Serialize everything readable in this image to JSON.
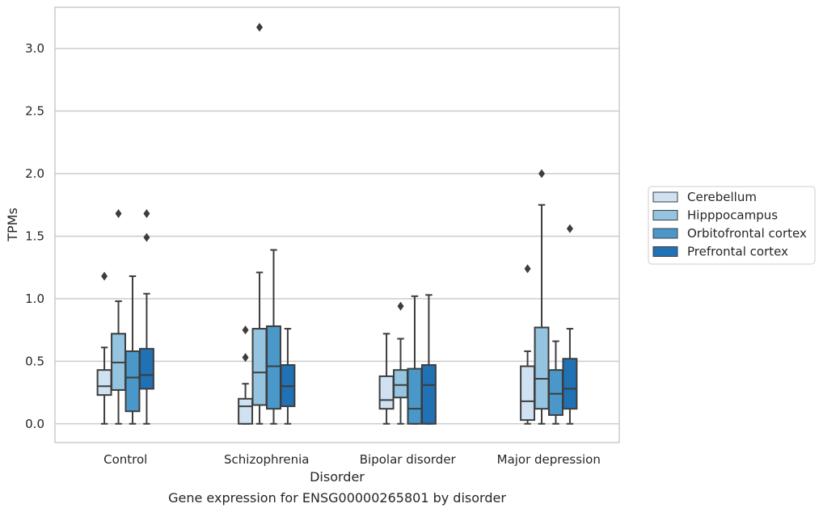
{
  "chart_data": {
    "type": "box",
    "caption": "Gene expression for ENSG00000265801 by disorder",
    "xlabel": "Disorder",
    "ylabel": "TPMs",
    "ylim": [
      -0.15,
      3.33
    ],
    "yticks": [
      0.0,
      0.5,
      1.0,
      1.5,
      2.0,
      2.5,
      3.0
    ],
    "ytick_labels": [
      "0.0",
      "0.5",
      "1.0",
      "1.5",
      "2.0",
      "2.5",
      "3.0"
    ],
    "grid": "horizontal",
    "legend_position": "right",
    "categories": [
      "Control",
      "Schizophrenia",
      "Bipolar disorder",
      "Major depression"
    ],
    "series": [
      {
        "name": "Cerebellum",
        "color": "#d0e1f2",
        "boxes": [
          {
            "min": 0.0,
            "q1": 0.23,
            "median": 0.3,
            "q3": 0.43,
            "max": 0.61,
            "outliers": [
              1.18
            ]
          },
          {
            "min": 0.0,
            "q1": 0.0,
            "median": 0.14,
            "q3": 0.2,
            "max": 0.32,
            "outliers": [
              0.53,
              0.75
            ]
          },
          {
            "min": 0.0,
            "q1": 0.12,
            "median": 0.19,
            "q3": 0.38,
            "max": 0.72,
            "outliers": []
          },
          {
            "min": 0.0,
            "q1": 0.03,
            "median": 0.18,
            "q3": 0.46,
            "max": 0.58,
            "outliers": [
              1.24
            ]
          }
        ]
      },
      {
        "name": "Hipppocampus",
        "color": "#94c4df",
        "boxes": [
          {
            "min": 0.0,
            "q1": 0.27,
            "median": 0.49,
            "q3": 0.72,
            "max": 0.98,
            "outliers": [
              1.68
            ]
          },
          {
            "min": 0.0,
            "q1": 0.15,
            "median": 0.41,
            "q3": 0.76,
            "max": 1.21,
            "outliers": [
              3.17
            ]
          },
          {
            "min": 0.0,
            "q1": 0.21,
            "median": 0.31,
            "q3": 0.43,
            "max": 0.68,
            "outliers": [
              0.94
            ]
          },
          {
            "min": 0.0,
            "q1": 0.12,
            "median": 0.36,
            "q3": 0.77,
            "max": 1.75,
            "outliers": [
              2.0
            ]
          }
        ]
      },
      {
        "name": "Orbitofrontal cortex",
        "color": "#4a98c9",
        "boxes": [
          {
            "min": 0.0,
            "q1": 0.1,
            "median": 0.37,
            "q3": 0.58,
            "max": 1.18,
            "outliers": []
          },
          {
            "min": 0.0,
            "q1": 0.12,
            "median": 0.46,
            "q3": 0.78,
            "max": 1.39,
            "outliers": []
          },
          {
            "min": 0.0,
            "q1": 0.0,
            "median": 0.12,
            "q3": 0.44,
            "max": 1.02,
            "outliers": []
          },
          {
            "min": 0.0,
            "q1": 0.07,
            "median": 0.24,
            "q3": 0.43,
            "max": 0.66,
            "outliers": []
          }
        ]
      },
      {
        "name": "Prefrontal cortex",
        "color": "#2171b5",
        "boxes": [
          {
            "min": 0.0,
            "q1": 0.28,
            "median": 0.39,
            "q3": 0.6,
            "max": 1.04,
            "outliers": [
              1.49,
              1.68
            ]
          },
          {
            "min": 0.0,
            "q1": 0.14,
            "median": 0.3,
            "q3": 0.47,
            "max": 0.76,
            "outliers": []
          },
          {
            "min": 0.0,
            "q1": 0.0,
            "median": 0.31,
            "q3": 0.47,
            "max": 1.03,
            "outliers": []
          },
          {
            "min": 0.0,
            "q1": 0.12,
            "median": 0.28,
            "q3": 0.52,
            "max": 0.76,
            "outliers": [
              1.56
            ]
          }
        ]
      }
    ]
  }
}
